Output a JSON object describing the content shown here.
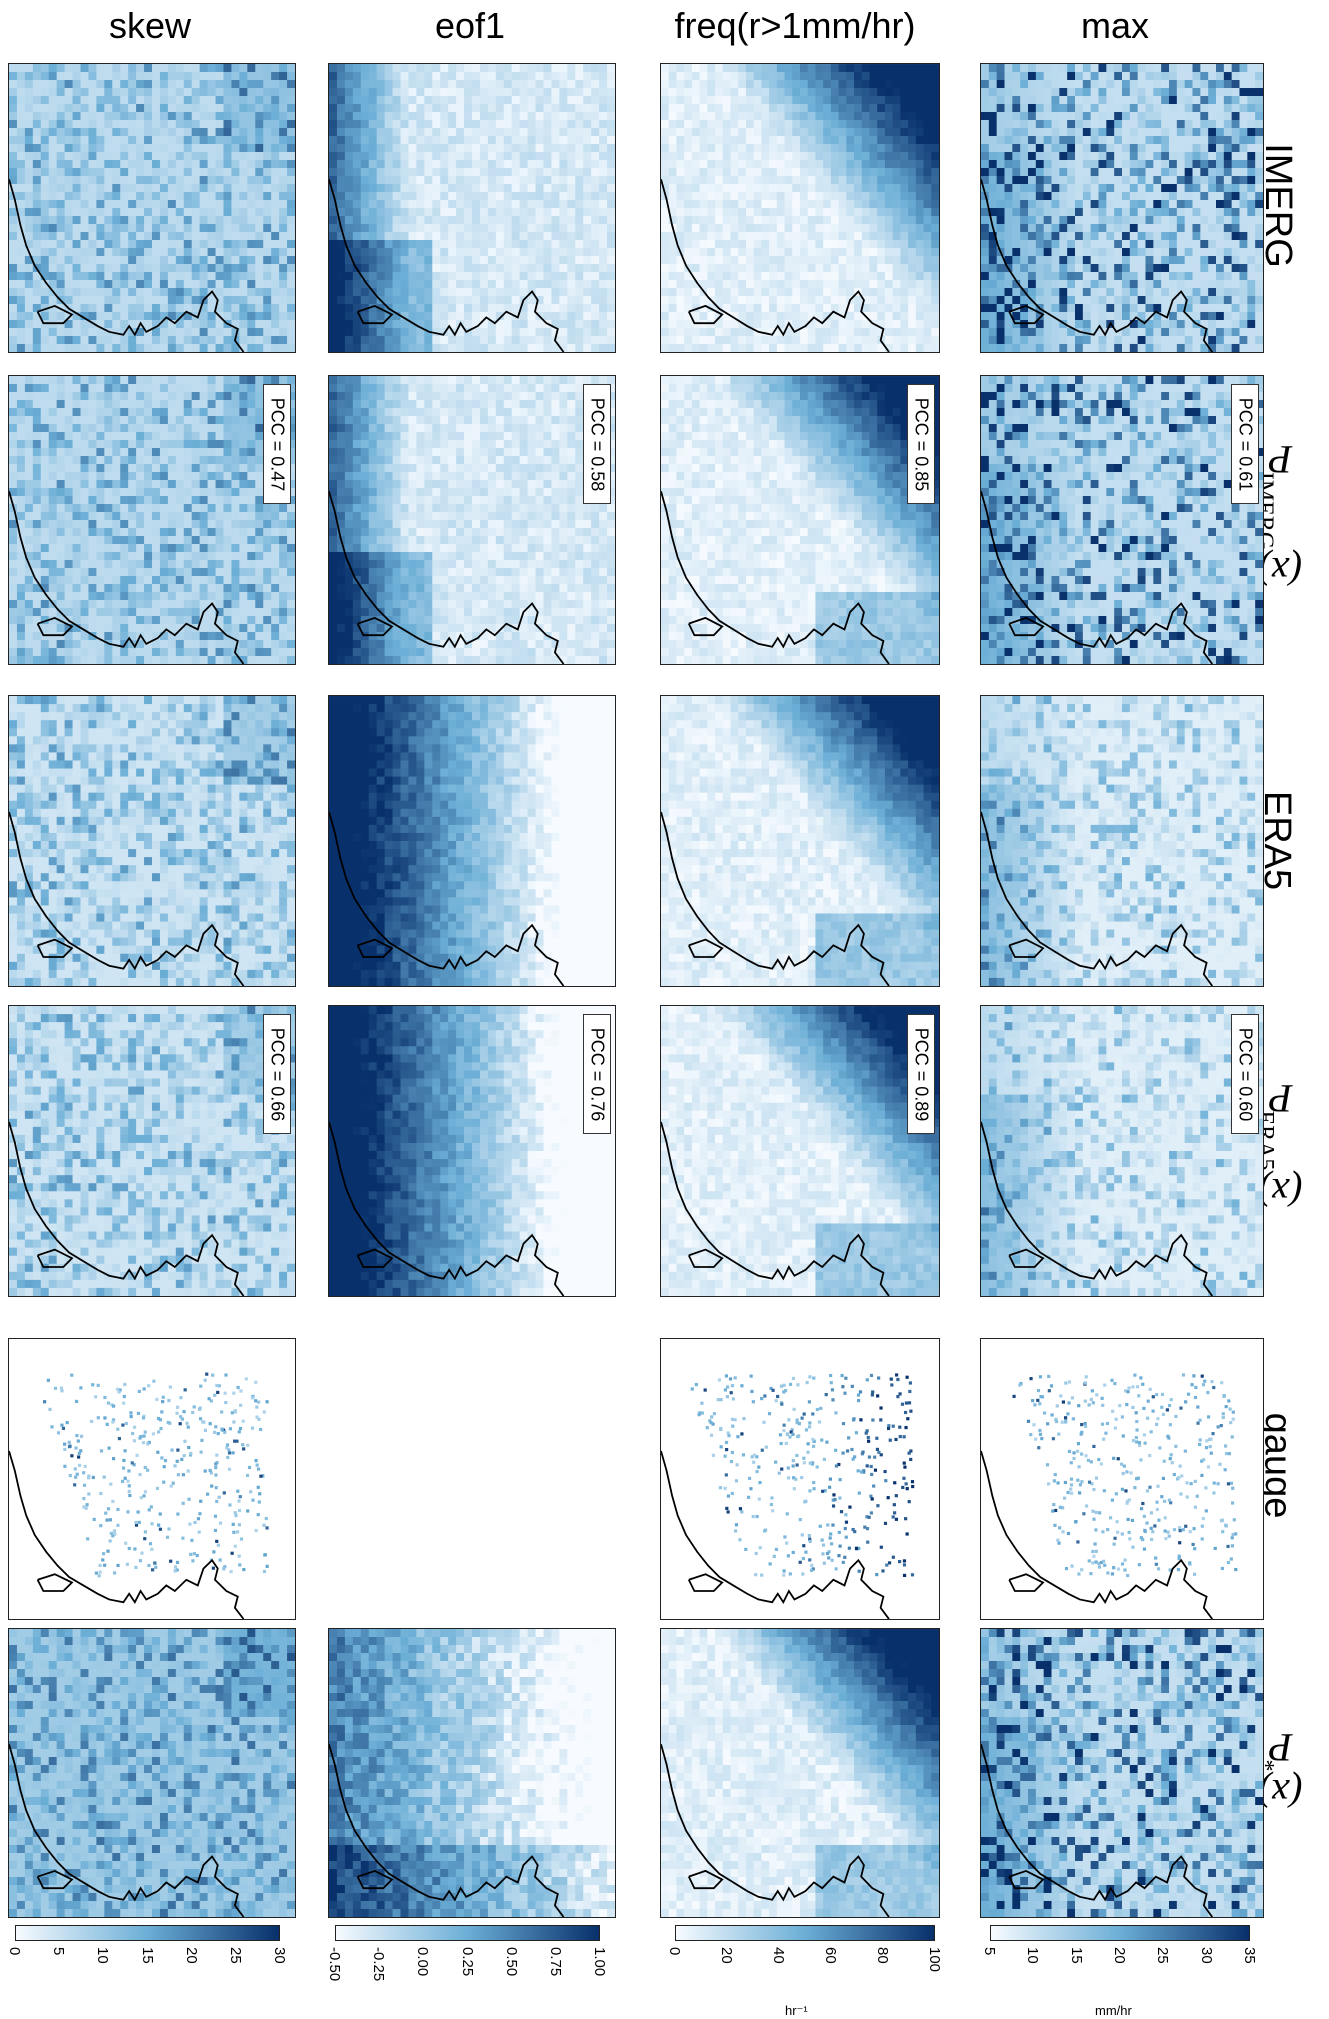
{
  "columns": [
    {
      "key": "skew",
      "label": "skew"
    },
    {
      "key": "eof1",
      "label": "eof1"
    },
    {
      "key": "freq",
      "label": "freq(r>1mm/hr)"
    },
    {
      "key": "max",
      "label": "max"
    }
  ],
  "rows": [
    {
      "key": "imerg",
      "label_main": "IMERG",
      "label_sub": ""
    },
    {
      "key": "p_imerg",
      "label_main": "P",
      "label_sub": "IMERG",
      "label_suffix": "(x)"
    },
    {
      "key": "era5",
      "label_main": "ERA5",
      "label_sub": ""
    },
    {
      "key": "p_era5",
      "label_main": "P",
      "label_sub": "ERA5",
      "label_suffix": "(x)"
    },
    {
      "key": "gauge",
      "label_main": "gauge",
      "label_sub": ""
    },
    {
      "key": "p_star",
      "label_main": "P",
      "label_sub": "*",
      "label_suffix": "(x)"
    }
  ],
  "pcc": {
    "p_imerg": {
      "skew": "PCC = 0.47",
      "eof1": "PCC = 0.58",
      "freq": "PCC = 0.85",
      "max": "PCC = 0.61"
    },
    "p_era5": {
      "skew": "PCC = 0.66",
      "eof1": "PCC = 0.76",
      "freq": "PCC = 0.89",
      "max": "PCC = 0.60"
    }
  },
  "colorbars": [
    {
      "key": "skew",
      "ticks": [
        "0",
        "5",
        "10",
        "15",
        "20",
        "25",
        "30"
      ],
      "unit": ""
    },
    {
      "key": "eof1",
      "ticks": [
        "-0.50",
        "-0.25",
        "0.00",
        "0.25",
        "0.50",
        "0.75",
        "1.00"
      ],
      "unit": ""
    },
    {
      "key": "freq",
      "ticks": [
        "0",
        "20",
        "40",
        "60",
        "80",
        "100"
      ],
      "unit": "hr⁻¹"
    },
    {
      "key": "max",
      "ticks": [
        "5",
        "10",
        "15",
        "20",
        "25",
        "30",
        "35"
      ],
      "unit": "mm/hr"
    }
  ],
  "colormap": {
    "low": "#f7fbff",
    "mid": "#6baed6",
    "high": "#08306b"
  }
}
